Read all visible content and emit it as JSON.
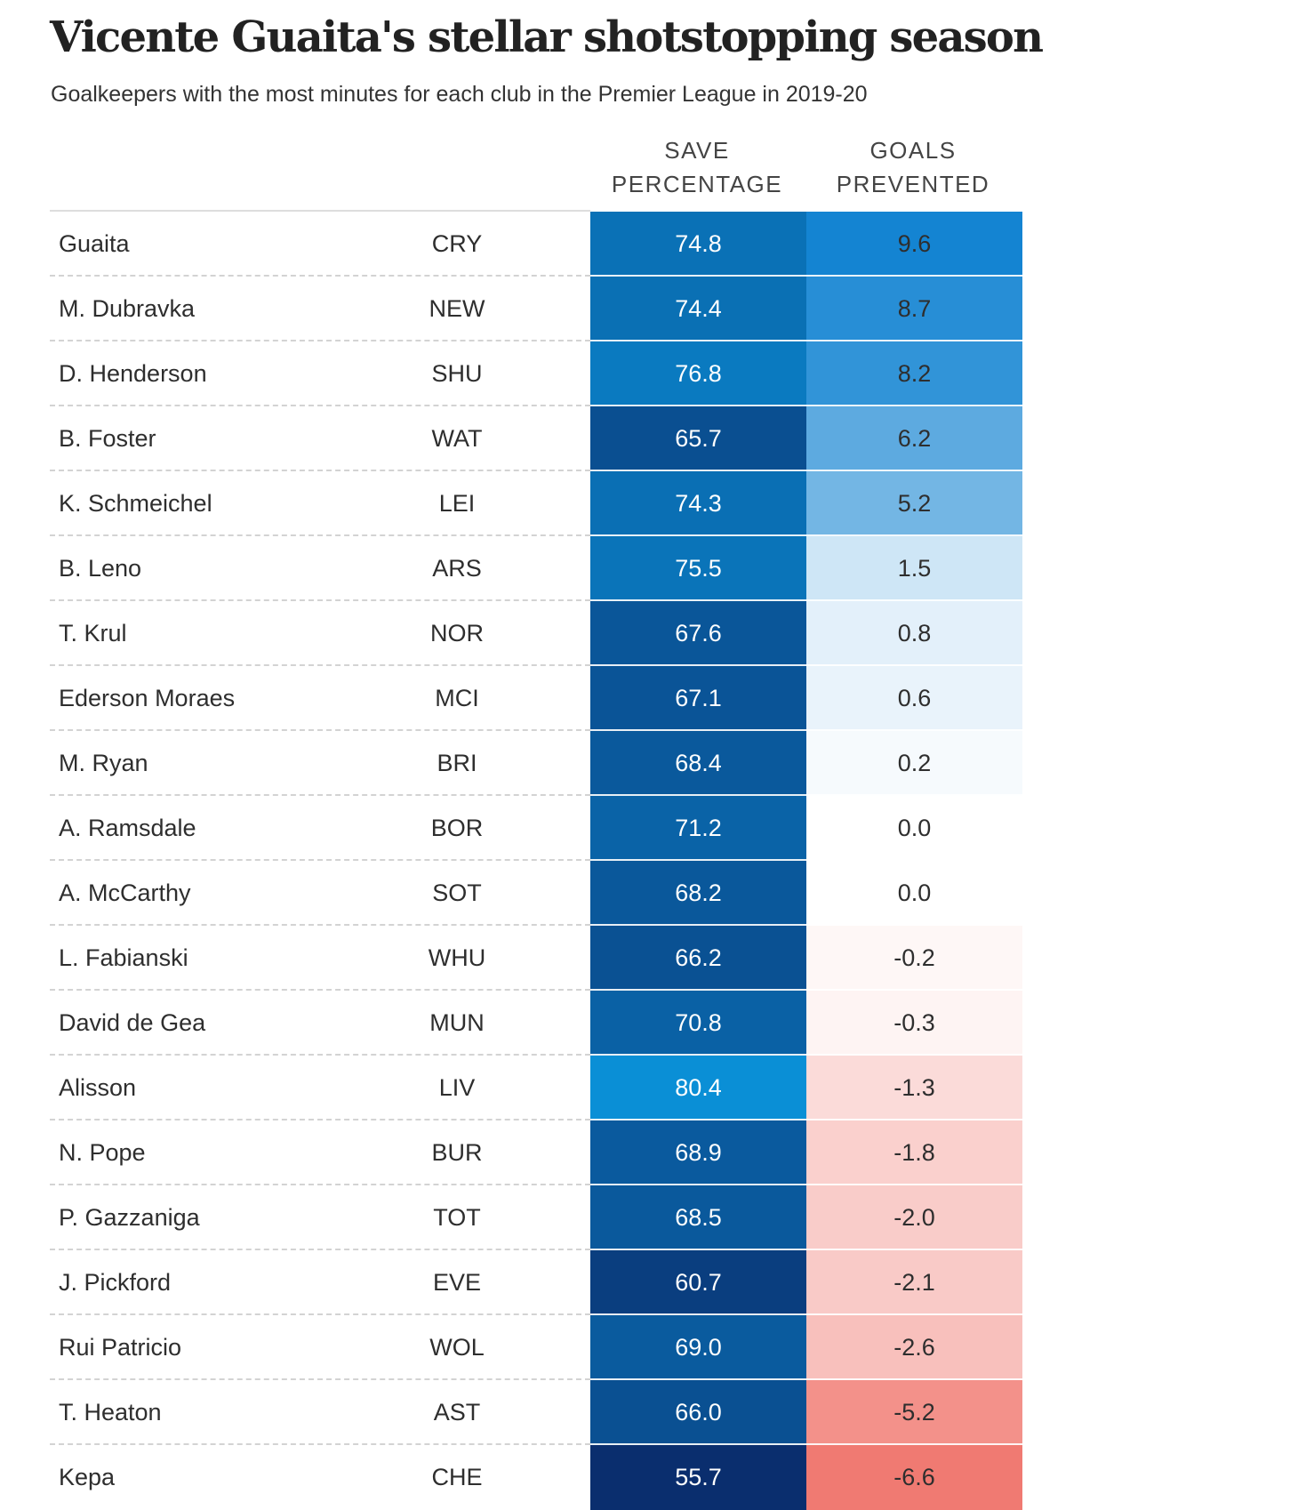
{
  "header": {
    "title": "Vicente Guaita's stellar shotstopping season",
    "subtitle": "Goalkeepers with the most minutes for each club in the Premier League in 2019-20",
    "col_save": "SAVE\nPERCENTAGE",
    "col_goals": "GOALS\nPREVENTED"
  },
  "colors": {
    "save_light": "#0a8fd6",
    "save_dark": "#0a2e6e",
    "goals_positive": "#0a7fd0",
    "goals_negative": "#f07a72",
    "goals_neutral": "#ffffff"
  },
  "chart_data": {
    "type": "table",
    "title": "Vicente Guaita's stellar shotstopping season",
    "subtitle": "Goalkeepers with the most minutes for each club in the Premier League in 2019-20",
    "columns": [
      "",
      "",
      "SAVE PERCENTAGE",
      "GOALS PREVENTED"
    ],
    "rows": [
      {
        "name": "Guaita",
        "club": "CRY",
        "save_pct": "74.8",
        "goals_prevented": "9.6"
      },
      {
        "name": "M. Dubravka",
        "club": "NEW",
        "save_pct": "74.4",
        "goals_prevented": "8.7"
      },
      {
        "name": "D. Henderson",
        "club": "SHU",
        "save_pct": "76.8",
        "goals_prevented": "8.2"
      },
      {
        "name": "B. Foster",
        "club": "WAT",
        "save_pct": "65.7",
        "goals_prevented": "6.2"
      },
      {
        "name": "K. Schmeichel",
        "club": "LEI",
        "save_pct": "74.3",
        "goals_prevented": "5.2"
      },
      {
        "name": "B. Leno",
        "club": "ARS",
        "save_pct": "75.5",
        "goals_prevented": "1.5"
      },
      {
        "name": "T. Krul",
        "club": "NOR",
        "save_pct": "67.6",
        "goals_prevented": "0.8"
      },
      {
        "name": "Ederson Moraes",
        "club": "MCI",
        "save_pct": "67.1",
        "goals_prevented": "0.6"
      },
      {
        "name": "M. Ryan",
        "club": "BRI",
        "save_pct": "68.4",
        "goals_prevented": "0.2"
      },
      {
        "name": "A. Ramsdale",
        "club": "BOR",
        "save_pct": "71.2",
        "goals_prevented": "0.0"
      },
      {
        "name": "A. McCarthy",
        "club": "SOT",
        "save_pct": "68.2",
        "goals_prevented": "0.0"
      },
      {
        "name": "L. Fabianski",
        "club": "WHU",
        "save_pct": "66.2",
        "goals_prevented": "-0.2"
      },
      {
        "name": "David de Gea",
        "club": "MUN",
        "save_pct": "70.8",
        "goals_prevented": "-0.3"
      },
      {
        "name": "Alisson",
        "club": "LIV",
        "save_pct": "80.4",
        "goals_prevented": "-1.3"
      },
      {
        "name": "N. Pope",
        "club": "BUR",
        "save_pct": "68.9",
        "goals_prevented": "-1.8"
      },
      {
        "name": "P. Gazzaniga",
        "club": "TOT",
        "save_pct": "68.5",
        "goals_prevented": "-2.0"
      },
      {
        "name": "J. Pickford",
        "club": "EVE",
        "save_pct": "60.7",
        "goals_prevented": "-2.1"
      },
      {
        "name": "Rui Patricio",
        "club": "WOL",
        "save_pct": "69.0",
        "goals_prevented": "-2.6"
      },
      {
        "name": "T. Heaton",
        "club": "AST",
        "save_pct": "66.0",
        "goals_prevented": "-5.2"
      },
      {
        "name": "Kepa",
        "club": "CHE",
        "save_pct": "55.7",
        "goals_prevented": "-6.6"
      }
    ]
  }
}
